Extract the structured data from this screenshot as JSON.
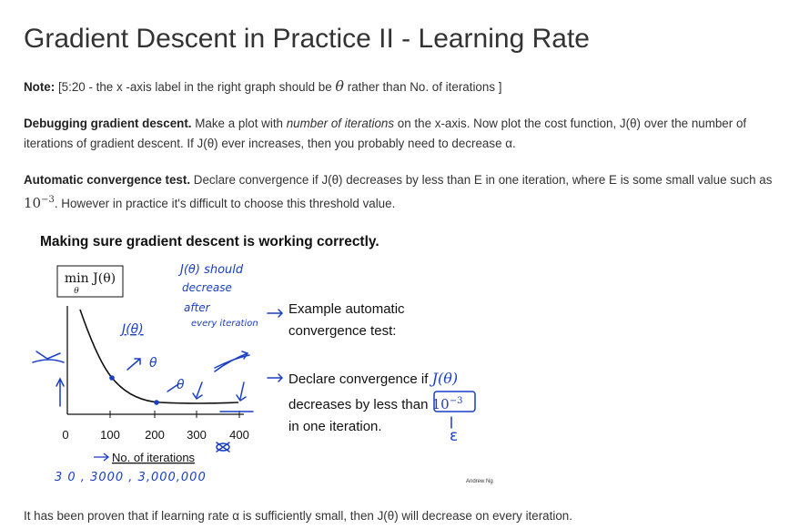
{
  "title": "Gradient Descent in Practice II - Learning Rate",
  "note": {
    "label": "Note:",
    "text_before": " [5:20 - the x -axis label in the right graph should be ",
    "theta": "θ",
    "text_after": " rather than No. of iterations ]"
  },
  "debugging": {
    "label": "Debugging gradient descent.",
    "text1": " Make a plot with ",
    "italic": "number of iterations",
    "text2": " on the x-axis. Now plot the cost function, J(θ) over the number of iterations of gradient descent. If J(θ) ever increases, then you probably need to decrease α."
  },
  "auto": {
    "label": "Automatic convergence test.",
    "text1": " Declare convergence if J(θ) decreases by less than E in one iteration, where E is some small value such as ",
    "base": "10",
    "exponent": "−3",
    "text2": ". However in practice it's difficult to choose this threshold value."
  },
  "slide": {
    "title": "Making sure gradient descent is working correctly.",
    "box_label": "min J(θ)",
    "box_sub": "θ",
    "x_ticks": [
      "0",
      "100",
      "200",
      "300",
      "400"
    ],
    "x_label": "No. of iterations",
    "example_line1": "Example automatic",
    "example_line2": "convergence test:",
    "declare_line1": "Declare convergence if",
    "declare_math": "J(θ)",
    "declare_line2": "decreases by less than",
    "declare_box": "10",
    "declare_box_exp": "−3",
    "declare_line3": "in one iteration.",
    "credit": "Andrew Ng",
    "hand_j_should": "J(θ) should",
    "hand_decrease": "decrease",
    "hand_after": "after",
    "hand_every": "every iteration",
    "hand_jtheta": "J(θ)",
    "hand_theta1": "θ",
    "hand_theta2": "θ",
    "hand_bottom": "3 0 ,   3000 ,   3,000,000",
    "hand_epsilon": "ε"
  },
  "final": "It has been proven that if learning rate α is sufficiently small, then J(θ) will decrease on every iteration.",
  "colors": {
    "ink_blue": "#1a3fc4",
    "text": "#333333"
  }
}
